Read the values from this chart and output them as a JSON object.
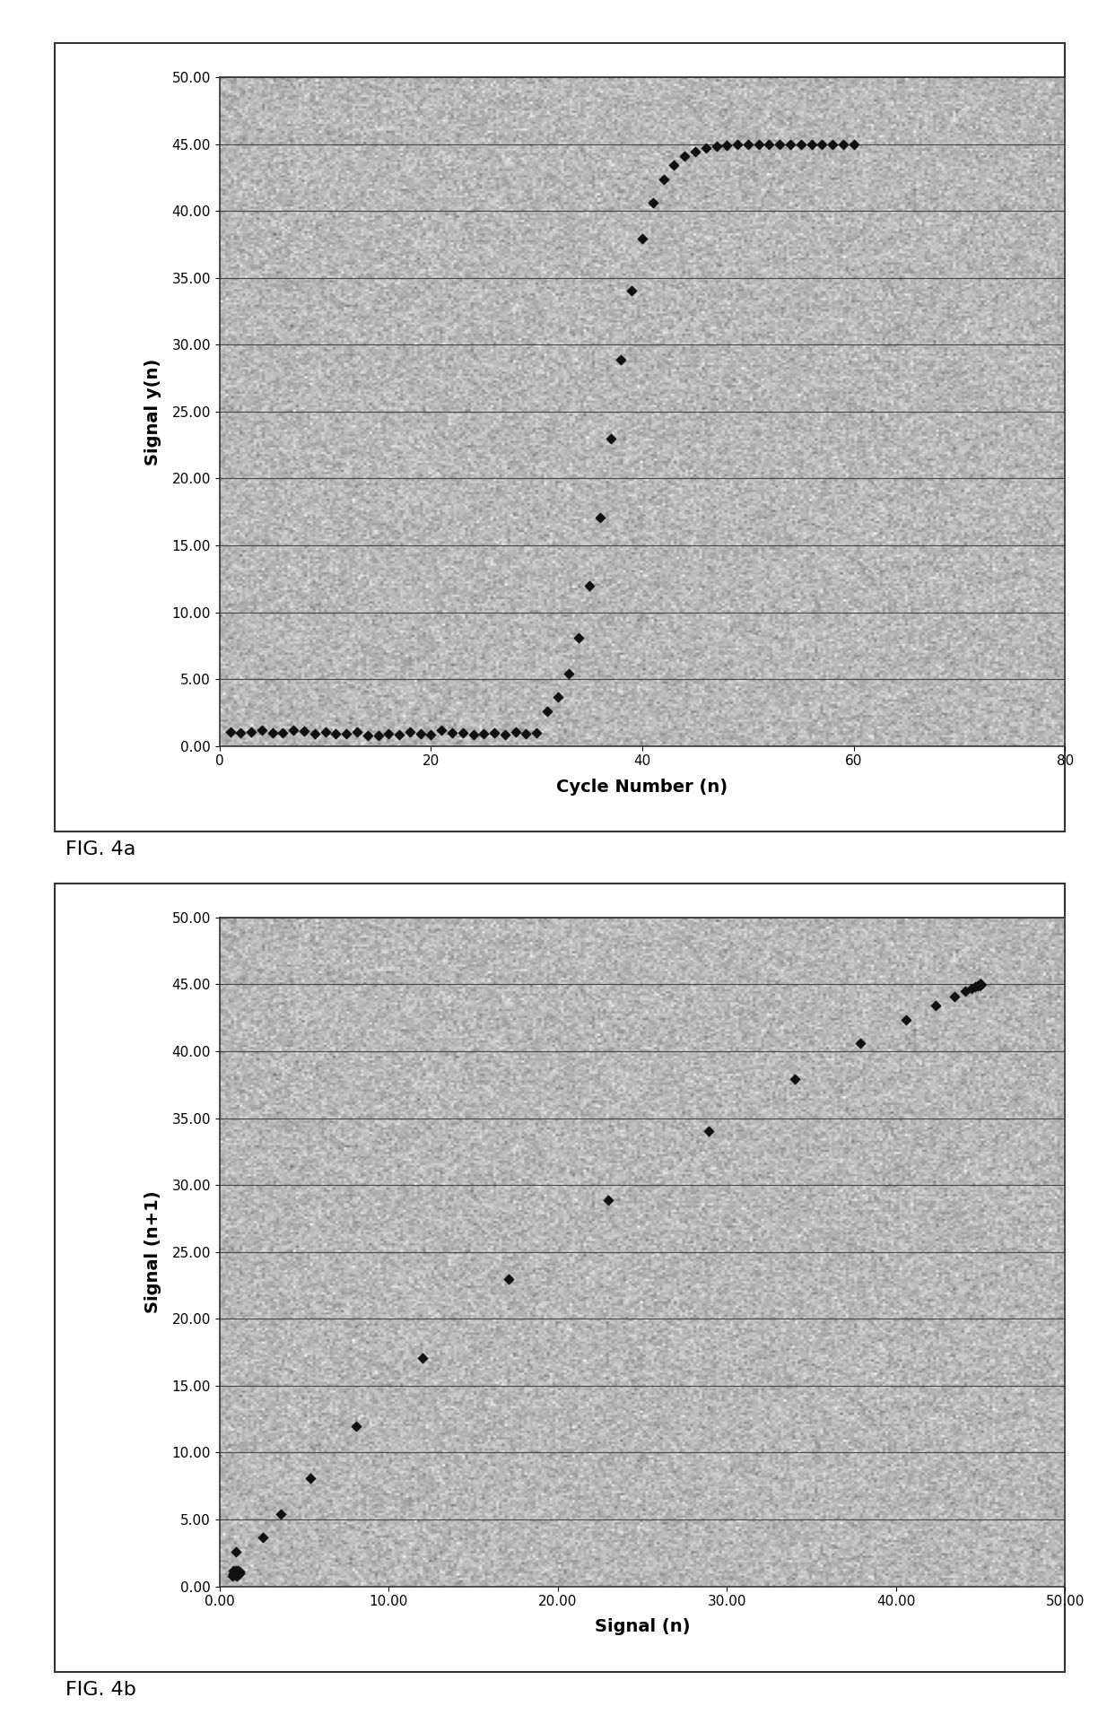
{
  "fig4a": {
    "xlabel": "Cycle Number (n)",
    "ylabel": "Signal y(n)",
    "xlim": [
      0,
      80
    ],
    "ylim": [
      0,
      50
    ],
    "xticks": [
      0,
      20,
      40,
      60,
      80
    ],
    "yticks": [
      0.0,
      5.0,
      10.0,
      15.0,
      20.0,
      25.0,
      30.0,
      35.0,
      40.0,
      45.0,
      50.0
    ],
    "figcaption": "FIG. 4a",
    "marker_color": "#111111",
    "bg_color_light": "#c8c8c8",
    "bg_color_dark": "#aaaaaa"
  },
  "fig4b": {
    "xlabel": "Signal (n)",
    "ylabel": "Signal (n+1)",
    "xlim": [
      0,
      50
    ],
    "ylim": [
      0,
      50
    ],
    "xticks": [
      0.0,
      10.0,
      20.0,
      30.0,
      40.0,
      50.0
    ],
    "yticks": [
      0.0,
      5.0,
      10.0,
      15.0,
      20.0,
      25.0,
      30.0,
      35.0,
      40.0,
      45.0,
      50.0
    ],
    "figcaption": "FIG. 4b",
    "marker_color": "#111111",
    "bg_color_light": "#c8c8c8",
    "bg_color_dark": "#aaaaaa"
  }
}
